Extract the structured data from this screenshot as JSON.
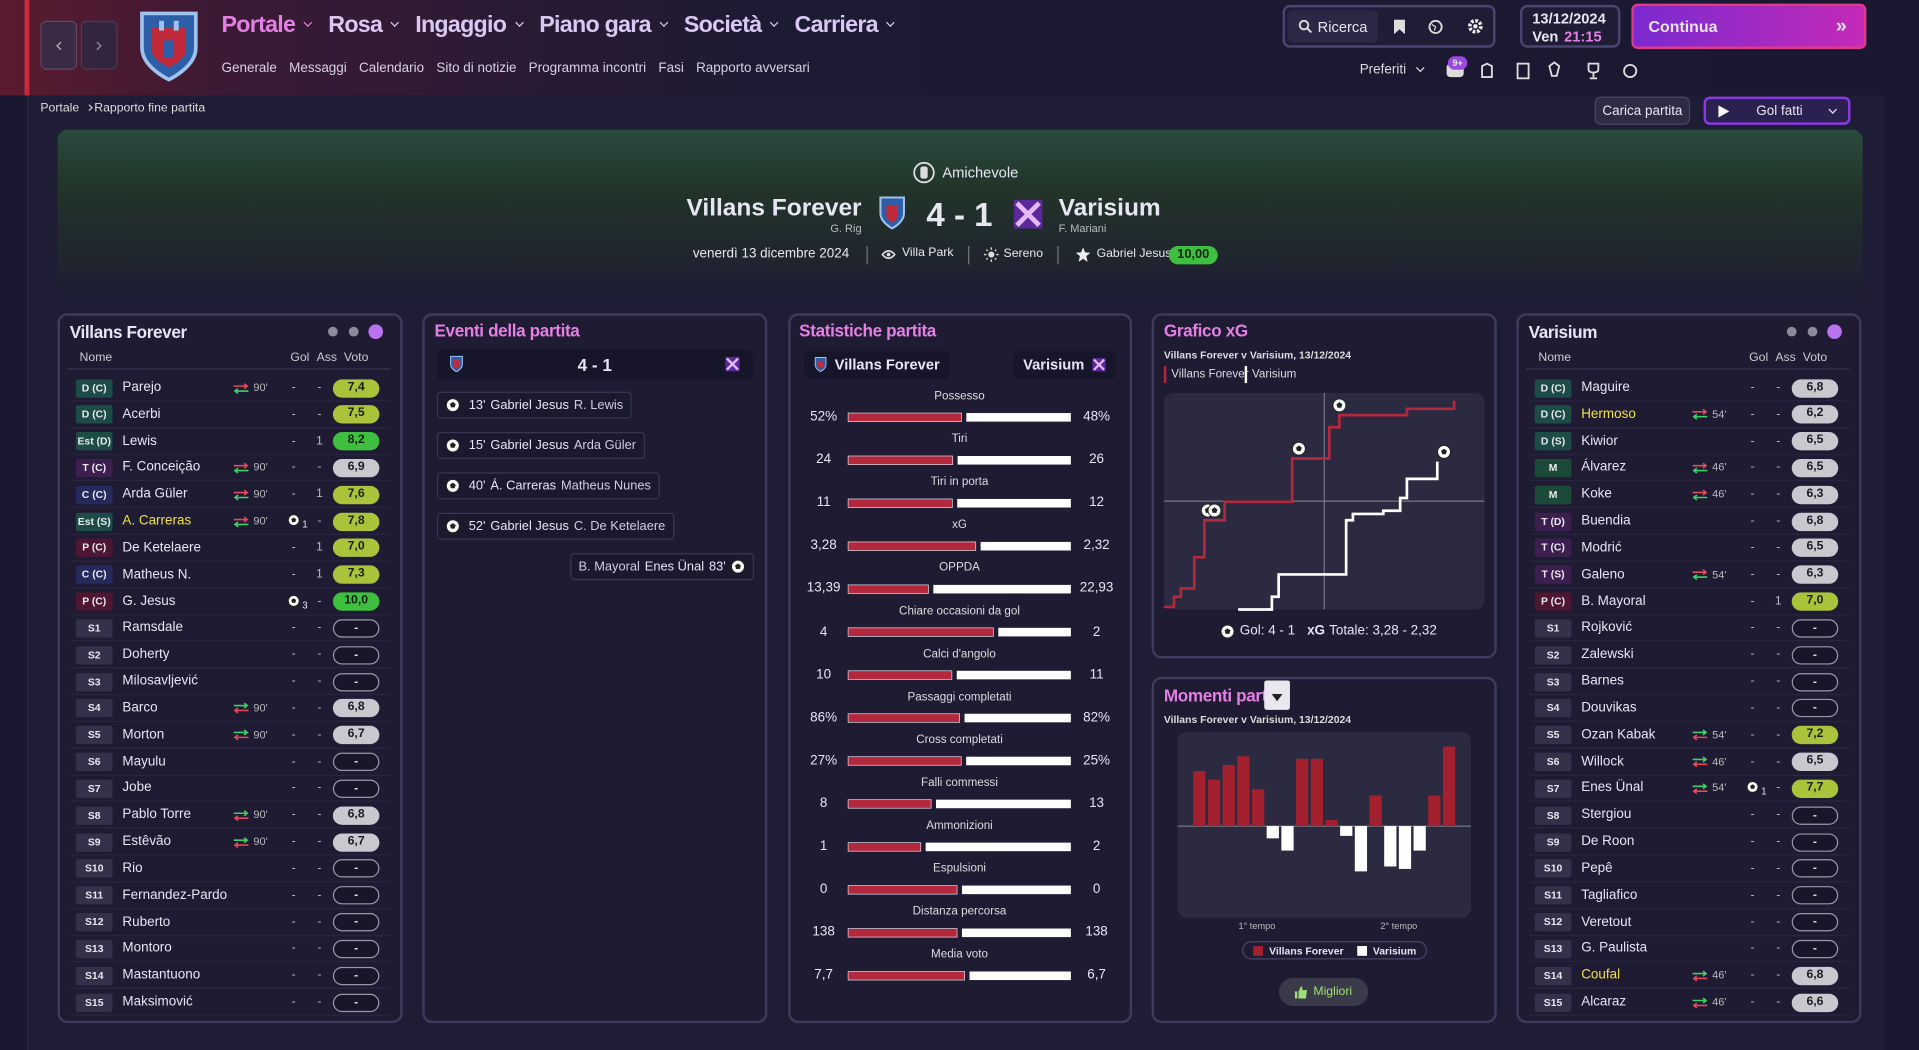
{
  "nav": {
    "menu": [
      "Portale",
      "Rosa",
      "Ingaggio",
      "Piano gara",
      "Società",
      "Carriera"
    ],
    "submenu": [
      "Generale",
      "Messaggi",
      "Calendario",
      "Sito di notizie",
      "Programma incontri",
      "Fasi",
      "Rapporto avversari"
    ],
    "search": "Ricerca",
    "date": "13/12/2024",
    "weekday": "Ven",
    "time": "21:15",
    "continue": "Continua",
    "favorites": "Preferiti",
    "badge": "9+"
  },
  "breadcrumb": [
    "Portale",
    "Rapporto fine partita"
  ],
  "actions": {
    "load": "Carica partita",
    "goals": "Gol fatti"
  },
  "header": {
    "competition": "Amichevole",
    "home": "Villans Forever",
    "home_manager": "G. Rig",
    "score": "4 - 1",
    "away": "Varisium",
    "away_manager": "F. Mariani",
    "date": "venerdì 13 dicembre 2024",
    "stadium": "Villa Park",
    "weather": "Sereno",
    "motm": "Gabriel Jesus",
    "motm_rating": "10,00"
  },
  "home_panel": {
    "title": "Villans Forever",
    "columns": [
      "Nome",
      "Gol",
      "Ass",
      "Voto"
    ],
    "rows": [
      {
        "pos": "D (C)",
        "name": "Parejo",
        "sub": "90'",
        "gol": "-",
        "ass": "-",
        "voto": "7,4"
      },
      {
        "pos": "D (C)",
        "name": "Acerbi",
        "gol": "-",
        "ass": "-",
        "voto": "7,5"
      },
      {
        "pos": "Est (D)",
        "name": "Lewis",
        "gol": "-",
        "ass": 1,
        "voto": "8,2"
      },
      {
        "pos": "T (C)",
        "name": "F. Conceição",
        "sub": "90'",
        "gol": "-",
        "ass": "-",
        "voto": "6,9"
      },
      {
        "pos": "C (C)",
        "name": "Arda Güler",
        "sub": "90'",
        "gol": "-",
        "ass": 1,
        "voto": "7,6"
      },
      {
        "pos": "Est (S)",
        "name": "A. Carreras",
        "highlight": true,
        "sub": "90'",
        "gol": 1,
        "ass": "-",
        "voto": "7,8"
      },
      {
        "pos": "P (C)",
        "name": "De Ketelaere",
        "gol": "-",
        "ass": 1,
        "voto": "7,0"
      },
      {
        "pos": "C (C)",
        "name": "Matheus N.",
        "gol": "-",
        "ass": 1,
        "voto": "7,3"
      },
      {
        "pos": "P (C)",
        "name": "G. Jesus",
        "gol": 3,
        "ass": "-",
        "voto": "10,0"
      },
      {
        "pos": "S1",
        "name": "Ramsdale",
        "gol": "-",
        "ass": "-",
        "voto": "-"
      },
      {
        "pos": "S2",
        "name": "Doherty",
        "gol": "-",
        "ass": "-",
        "voto": "-"
      },
      {
        "pos": "S3",
        "name": "Milosavljević",
        "gol": "-",
        "ass": "-",
        "voto": "-"
      },
      {
        "pos": "S4",
        "name": "Barco",
        "sub": "90'",
        "gol": "-",
        "ass": "-",
        "voto": "6,8"
      },
      {
        "pos": "S5",
        "name": "Morton",
        "sub": "90'",
        "gol": "-",
        "ass": "-",
        "voto": "6,7"
      },
      {
        "pos": "S6",
        "name": "Mayulu",
        "gol": "-",
        "ass": "-",
        "voto": "-"
      },
      {
        "pos": "S7",
        "name": "Jobe",
        "gol": "-",
        "ass": "-",
        "voto": "-"
      },
      {
        "pos": "S8",
        "name": "Pablo Torre",
        "sub": "90'",
        "gol": "-",
        "ass": "-",
        "voto": "6,8"
      },
      {
        "pos": "S9",
        "name": "Estêvão",
        "sub": "90'",
        "gol": "-",
        "ass": "-",
        "voto": "6,7"
      },
      {
        "pos": "S10",
        "name": "Rio",
        "gol": "-",
        "ass": "-",
        "voto": "-"
      },
      {
        "pos": "S11",
        "name": "Fernandez-Pardo",
        "gol": "-",
        "ass": "-",
        "voto": "-"
      },
      {
        "pos": "S12",
        "name": "Ruberto",
        "gol": "-",
        "ass": "-",
        "voto": "-"
      },
      {
        "pos": "S13",
        "name": "Montoro",
        "gol": "-",
        "ass": "-",
        "voto": "-"
      },
      {
        "pos": "S14",
        "name": "Mastantuono",
        "gol": "-",
        "ass": "-",
        "voto": "-"
      },
      {
        "pos": "S15",
        "name": "Maksimović",
        "gol": "-",
        "ass": "-",
        "voto": "-"
      }
    ]
  },
  "away_panel": {
    "title": "Varisium",
    "columns": [
      "Nome",
      "Gol",
      "Ass",
      "Voto"
    ],
    "rows": [
      {
        "pos": "D (C)",
        "name": "Maguire",
        "gol": "-",
        "ass": "-",
        "voto": "6,8"
      },
      {
        "pos": "D (C)",
        "name": "Hermoso",
        "highlight": true,
        "sub": "54'",
        "gol": "-",
        "ass": "-",
        "voto": "6,2"
      },
      {
        "pos": "D (S)",
        "name": "Kiwior",
        "gol": "-",
        "ass": "-",
        "voto": "6,5"
      },
      {
        "pos": "M",
        "name": "Álvarez",
        "sub": "46'",
        "gol": "-",
        "ass": "-",
        "voto": "6,5"
      },
      {
        "pos": "M",
        "name": "Koke",
        "sub": "46'",
        "gol": "-",
        "ass": "-",
        "voto": "6,3"
      },
      {
        "pos": "T (D)",
        "name": "Buendia",
        "gol": "-",
        "ass": "-",
        "voto": "6,8"
      },
      {
        "pos": "T (C)",
        "name": "Modrić",
        "gol": "-",
        "ass": "-",
        "voto": "6,5"
      },
      {
        "pos": "T (S)",
        "name": "Galeno",
        "sub": "54'",
        "gol": "-",
        "ass": "-",
        "voto": "6,3"
      },
      {
        "pos": "P (C)",
        "name": "B. Mayoral",
        "gol": "-",
        "ass": 1,
        "voto": "7,0"
      },
      {
        "pos": "S1",
        "name": "Rojković",
        "gol": "-",
        "ass": "-",
        "voto": "-"
      },
      {
        "pos": "S2",
        "name": "Zalewski",
        "gol": "-",
        "ass": "-",
        "voto": "-"
      },
      {
        "pos": "S3",
        "name": "Barnes",
        "gol": "-",
        "ass": "-",
        "voto": "-"
      },
      {
        "pos": "S4",
        "name": "Douvikas",
        "gol": "-",
        "ass": "-",
        "voto": "-"
      },
      {
        "pos": "S5",
        "name": "Ozan Kabak",
        "sub": "54'",
        "gol": "-",
        "ass": "-",
        "voto": "7,2"
      },
      {
        "pos": "S6",
        "name": "Willock",
        "sub": "46'",
        "gol": "-",
        "ass": "-",
        "voto": "6,5"
      },
      {
        "pos": "S7",
        "name": "Enes Ünal",
        "sub": "54'",
        "gol": 1,
        "ass": "-",
        "voto": "7,7"
      },
      {
        "pos": "S8",
        "name": "Stergiou",
        "gol": "-",
        "ass": "-",
        "voto": "-"
      },
      {
        "pos": "S9",
        "name": "De Roon",
        "gol": "-",
        "ass": "-",
        "voto": "-"
      },
      {
        "pos": "S10",
        "name": "Pepê",
        "gol": "-",
        "ass": "-",
        "voto": "-"
      },
      {
        "pos": "S11",
        "name": "Tagliafico",
        "gol": "-",
        "ass": "-",
        "voto": "-"
      },
      {
        "pos": "S12",
        "name": "Veretout",
        "gol": "-",
        "ass": "-",
        "voto": "-"
      },
      {
        "pos": "S13",
        "name": "G. Paulista",
        "gol": "-",
        "ass": "-",
        "voto": "-"
      },
      {
        "pos": "S14",
        "name": "Coufal",
        "highlight": true,
        "sub": "46'",
        "gol": "-",
        "ass": "-",
        "voto": "6,8"
      },
      {
        "pos": "S15",
        "name": "Alcaraz",
        "sub": "46'",
        "gol": "-",
        "ass": "-",
        "voto": "6,6"
      }
    ]
  },
  "events": {
    "title": "Eventi della partita",
    "score": "4 - 1",
    "items": [
      {
        "minute": "13'",
        "scorer": "Gabriel Jesus",
        "assist": "R. Lewis",
        "side": "home"
      },
      {
        "minute": "15'",
        "scorer": "Gabriel Jesus",
        "assist": "Arda Güler",
        "side": "home"
      },
      {
        "minute": "40'",
        "scorer": "Á. Carreras",
        "assist": "Matheus Nunes",
        "side": "home"
      },
      {
        "minute": "52'",
        "scorer": "Gabriel Jesus",
        "assist": "C. De Ketelaere",
        "side": "home"
      },
      {
        "minute": "83'",
        "scorer": "Enes Ünal",
        "assist": "B. Mayoral",
        "side": "away"
      }
    ]
  },
  "stats": {
    "title": "Statistiche partita",
    "home": "Villans Forever",
    "away": "Varisium",
    "rows": [
      {
        "name": "Possesso",
        "values": [
          52,
          48
        ],
        "value_labels": [
          "52%",
          "48%"
        ]
      },
      {
        "name": "Tiri",
        "values": [
          24,
          26
        ]
      },
      {
        "name": "Tiri in porta",
        "values": [
          11,
          12
        ]
      },
      {
        "name": "xG",
        "values": [
          3.28,
          2.32
        ],
        "value_labels": [
          "3,28",
          "2,32"
        ]
      },
      {
        "name": "OPPDA",
        "values": [
          13.39,
          22.93
        ],
        "value_labels": [
          "13,39",
          "22,93"
        ]
      },
      {
        "name": "Chiare occasioni da gol",
        "values": [
          4,
          2
        ]
      },
      {
        "name": "Calci d'angolo",
        "values": [
          10,
          11
        ]
      },
      {
        "name": "Passaggi completati",
        "values": [
          86,
          82
        ],
        "value_labels": [
          "86%",
          "82%"
        ]
      },
      {
        "name": "Cross completati",
        "values": [
          27,
          25
        ],
        "value_labels": [
          "27%",
          "25%"
        ]
      },
      {
        "name": "Falli commessi",
        "values": [
          8,
          13
        ]
      },
      {
        "name": "Ammonizioni",
        "values": [
          1,
          2
        ]
      },
      {
        "name": "Espulsioni",
        "values": [
          0,
          0
        ]
      },
      {
        "name": "Distanza percorsa",
        "values": [
          138,
          138
        ]
      },
      {
        "name": "Media voto",
        "values": [
          7.7,
          6.7
        ],
        "value_labels": [
          "7,7",
          "6,7"
        ]
      }
    ]
  },
  "xg_chart": {
    "type": "line",
    "title": "Grafico xG",
    "subtitle": "Villans Forever v Varisium, 13/12/2024",
    "xlim": [
      0,
      95
    ],
    "ylim": [
      0,
      3.4
    ],
    "series": [
      {
        "name": "Villans Forever",
        "color": "#b3283c",
        "x": [
          0,
          3,
          5,
          9,
          12,
          18,
          38,
          49,
          52,
          72,
          86
        ],
        "values": [
          0.04,
          0.2,
          0.33,
          0.82,
          1.4,
          1.69,
          2.37,
          2.86,
          3.05,
          3.15,
          3.28
        ]
      },
      {
        "name": "Varisium",
        "color": "#ffffff",
        "x": [
          22,
          32,
          34,
          54,
          56,
          65,
          70,
          72,
          81
        ],
        "values": [
          0,
          0.2,
          0.55,
          1.4,
          1.5,
          1.55,
          1.75,
          2.05,
          2.32
        ]
      }
    ],
    "goals_label": "Gol: 4 - 1",
    "xg_label": "xG",
    "xg_total": "Totale: 3,28 - 2,32"
  },
  "moments_chart": {
    "type": "bar",
    "title": "Momenti partita",
    "subtitle": "Villans Forever v Varisium, 13/12/2024",
    "values": [
      45,
      38,
      50,
      57,
      30,
      -10,
      -20,
      55,
      55,
      5,
      -8,
      -37,
      25,
      -33,
      -35,
      -20,
      25,
      65
    ],
    "ylim": [
      -75,
      77
    ],
    "positive_color": "#a3202f",
    "negative_color": "#ffffff",
    "halves": [
      "1° tempo",
      "2° tempo"
    ],
    "legend": [
      "Villans Forever",
      "Varisium"
    ],
    "button": "Migliori"
  }
}
